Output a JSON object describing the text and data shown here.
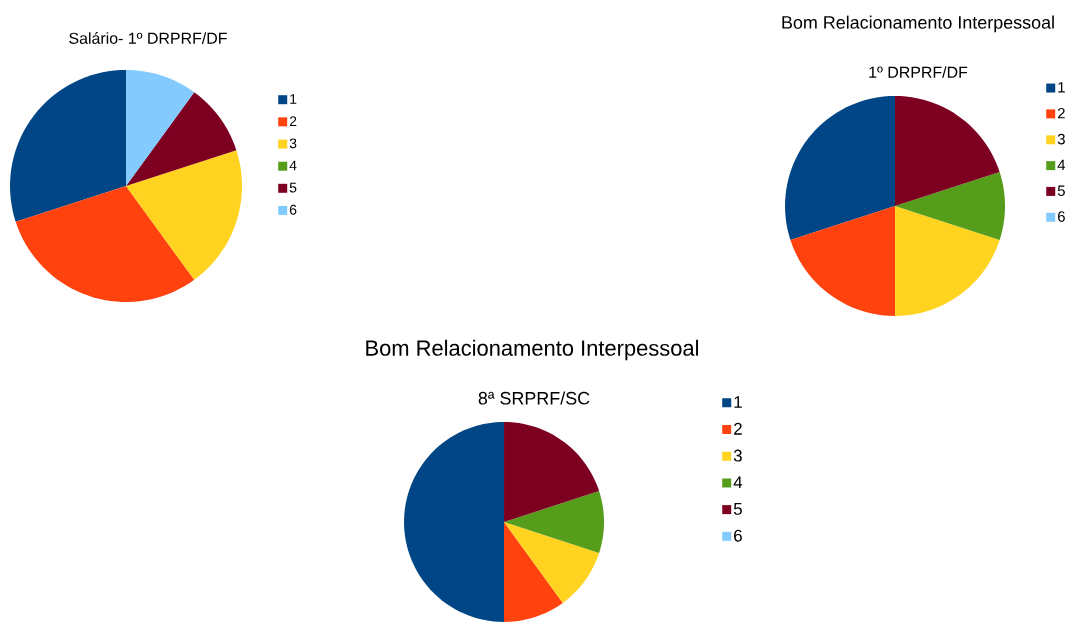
{
  "chart_data": [
    {
      "type": "pie",
      "title": "Salário- 1º DRPRF/DF",
      "categories": [
        "1",
        "2",
        "3",
        "4",
        "5",
        "6"
      ],
      "values": [
        30,
        30,
        20,
        0,
        10,
        10
      ],
      "colors": [
        "#004586",
        "#ff420e",
        "#ffd320",
        "#579d1c",
        "#7e0021",
        "#83caff"
      ],
      "legend": "right"
    },
    {
      "type": "pie",
      "title": "Bom Relacionamento Interpessoal",
      "subtitle": "1º DRPRF/DF",
      "categories": [
        "1",
        "2",
        "3",
        "4",
        "5",
        "6"
      ],
      "values": [
        30,
        20,
        20,
        10,
        20,
        0
      ],
      "colors": [
        "#004586",
        "#ff420e",
        "#ffd320",
        "#579d1c",
        "#7e0021",
        "#83caff"
      ],
      "legend": "right"
    },
    {
      "type": "pie",
      "title": "Bom Relacionamento Interpessoal",
      "subtitle": "8ª SRPRF/SC",
      "categories": [
        "1",
        "2",
        "3",
        "4",
        "5",
        "6"
      ],
      "values": [
        50,
        10,
        10,
        10,
        20,
        0
      ],
      "colors": [
        "#004586",
        "#ff420e",
        "#ffd320",
        "#579d1c",
        "#7e0021",
        "#83caff"
      ],
      "legend": "right"
    }
  ]
}
